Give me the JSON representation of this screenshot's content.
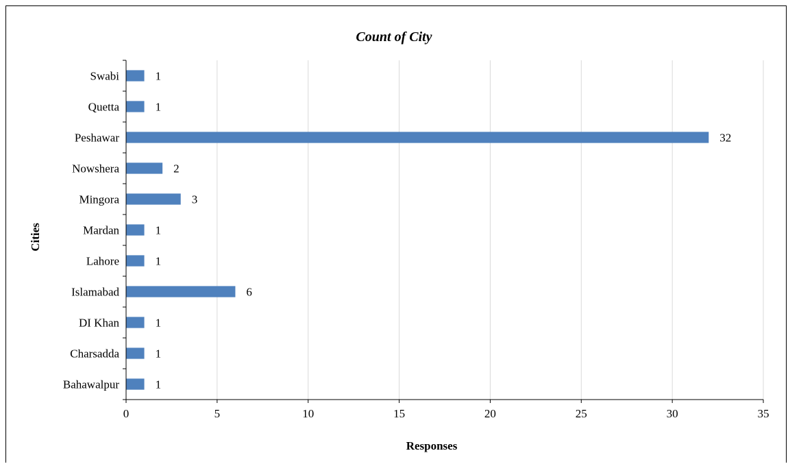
{
  "chart_data": {
    "type": "bar",
    "orientation": "horizontal",
    "title": "Count of City",
    "xlabel": "Responses",
    "ylabel": "Cities",
    "categories": [
      "Bahawalpur",
      "Charsadda",
      "DI Khan",
      "Islamabad",
      "Lahore",
      "Mardan",
      "Mingora",
      "Nowshera",
      "Peshawar",
      "Quetta",
      "Swabi"
    ],
    "values": [
      1,
      1,
      1,
      6,
      1,
      1,
      3,
      2,
      32,
      1,
      1
    ],
    "data_labels": [
      "1",
      "1",
      "1",
      "6",
      "1",
      "1",
      "3",
      "2",
      "32",
      "1",
      "1"
    ],
    "xlim": [
      0,
      35
    ],
    "x_ticks": [
      "0",
      "5",
      "10",
      "15",
      "20",
      "25",
      "30",
      "35"
    ],
    "grid": "vertical",
    "legend": "none",
    "bar_color": "#4F81BD",
    "grid_color": "#D9D9D9"
  }
}
